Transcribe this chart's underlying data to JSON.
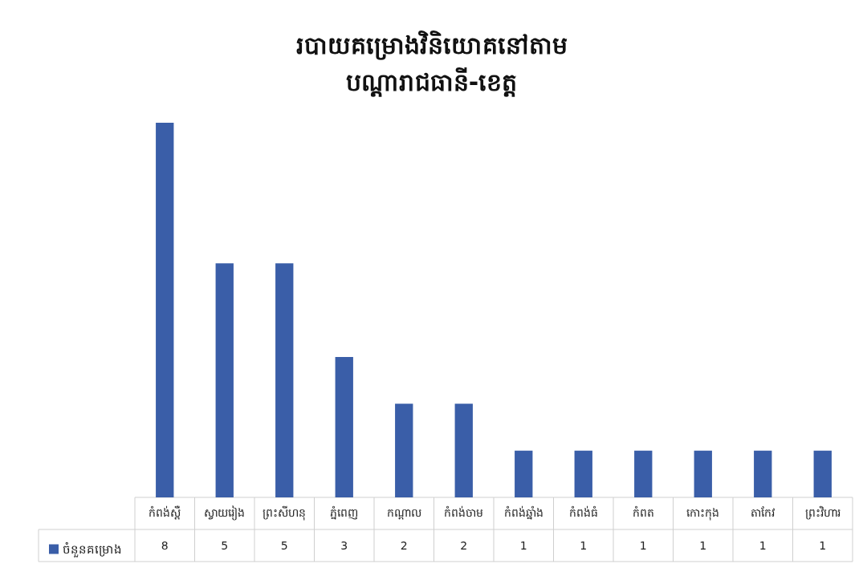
{
  "chart_data": {
    "type": "bar",
    "title": "របាយគម្រោងវិនិយោគនៅតាម\nបណ្ដារាជធានី-ខេត្ត",
    "categories": [
      "កំពង់ស្ពឺ",
      "ស្វាយរៀង",
      "ព្រះសីហនុ",
      "ភ្នំពេញ",
      "កណ្ដាល",
      "កំពង់ចាម",
      "កំពង់ឆ្នាំង",
      "កំពង់ធំ",
      "កំពត",
      "កោះកុង",
      "តាកែវ",
      "ព្រះវិហារ"
    ],
    "series": [
      {
        "name": "ចំនួនគម្រោង",
        "color": "#3a5ea8",
        "values": [
          8,
          5,
          5,
          3,
          2,
          2,
          1,
          1,
          1,
          1,
          1,
          1
        ]
      }
    ],
    "data_labels": true,
    "legend": "bottom left",
    "tick_labels": "x"
  }
}
